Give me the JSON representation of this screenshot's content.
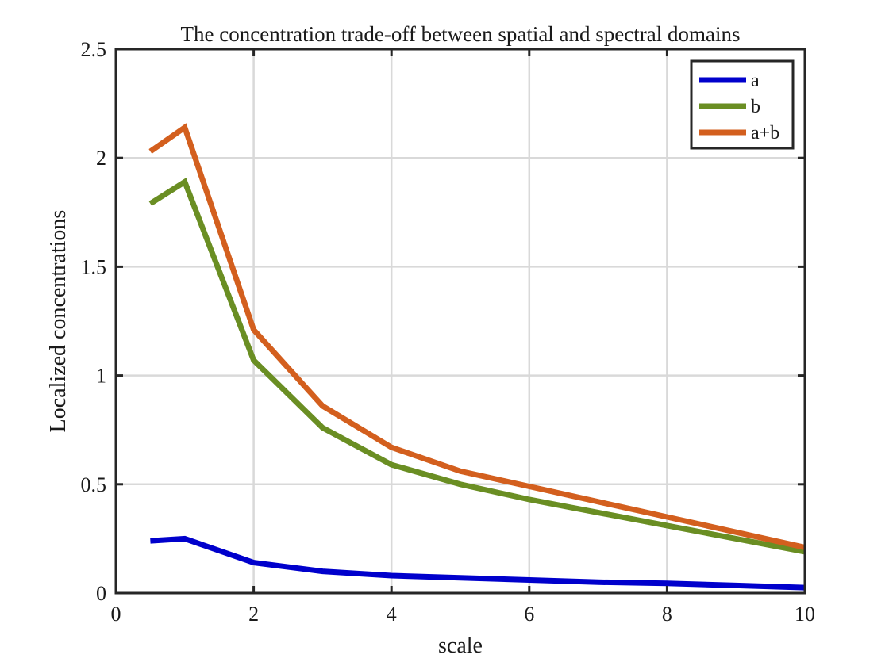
{
  "chart_data": {
    "type": "line",
    "title": "The concentration trade-off between spatial and spectral domains",
    "xlabel": "scale",
    "ylabel": "Localized concentrations",
    "xlim": [
      0,
      10
    ],
    "ylim": [
      0,
      2.5
    ],
    "xticks": [
      0,
      2,
      4,
      6,
      8,
      10
    ],
    "yticks": [
      0,
      0.5,
      1,
      1.5,
      2,
      2.5
    ],
    "xtick_labels": [
      "0",
      "2",
      "4",
      "6",
      "8",
      "10"
    ],
    "ytick_labels": [
      "0",
      "0.5",
      "1",
      "1.5",
      "2",
      "2.5"
    ],
    "grid": true,
    "legend_position": "top-right",
    "x": [
      0.5,
      1,
      2,
      3,
      4,
      5,
      6,
      7,
      8,
      9,
      10
    ],
    "series": [
      {
        "name": "a",
        "color": "#0000cc",
        "values": [
          0.24,
          0.25,
          0.14,
          0.1,
          0.08,
          0.07,
          0.06,
          0.05,
          0.045,
          0.035,
          0.025
        ]
      },
      {
        "name": "b",
        "color": "#6a8e23",
        "values": [
          1.79,
          1.89,
          1.07,
          0.76,
          0.59,
          0.5,
          0.43,
          0.37,
          0.31,
          0.25,
          0.19
        ]
      },
      {
        "name": "a+b",
        "color": "#d35f1e",
        "values": [
          2.03,
          2.14,
          1.21,
          0.86,
          0.67,
          0.56,
          0.49,
          0.42,
          0.35,
          0.28,
          0.21
        ]
      }
    ]
  }
}
